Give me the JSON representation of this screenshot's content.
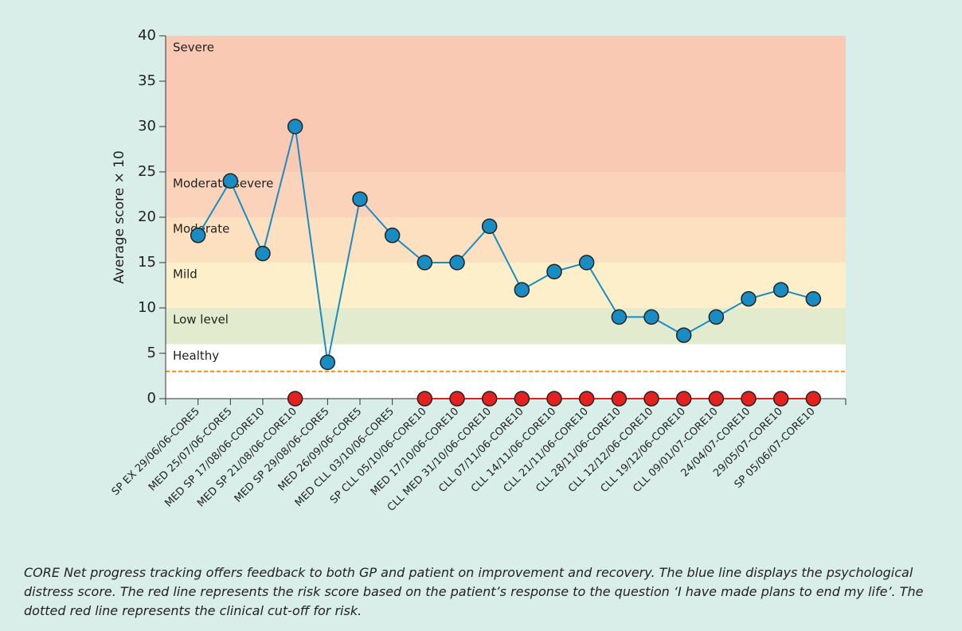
{
  "chart_data": {
    "type": "line",
    "ylabel": "Average score × 10",
    "categories": [
      "SP EX 29/06/06-CORE5",
      "MED 25/07/06-CORE5",
      "MED SP 17/08/06-CORE10",
      "MED SP 21/08/06-CORE10",
      "MED SP 29/08/06-CORE5",
      "MED 26/09/06-CORE5",
      "MED CLL 03/10/06-CORE5",
      "SP CLL 05/10/06-CORE10",
      "MED 17/10/06-CORE10",
      "CLL MED 31/10/06-CORE10",
      "CLL 07/11/06-CORE10",
      "CLL 14/11/06-CORE10",
      "CLL 21/11/06-CORE10",
      "CLL 28/11/06-CORE10",
      "CLL 12/12/06-CORE10",
      "CLL 19/12/06-CORE10",
      "CLL 09/01/07-CORE10",
      "24/04/07-CORE10",
      "29/05/07-CORE10",
      "SP 05/06/07-CORE10"
    ],
    "series": [
      {
        "color": "#1a8cc4",
        "values": [
          18,
          24,
          16,
          30,
          4,
          22,
          18,
          15,
          15,
          19,
          12,
          14,
          15,
          9,
          9,
          7,
          9,
          11,
          12,
          11
        ]
      },
      {
        "color": "#e3211f",
        "values": [
          null,
          null,
          null,
          0,
          null,
          null,
          null,
          0,
          0,
          0,
          0,
          0,
          0,
          0,
          0,
          0,
          0,
          0,
          0,
          0
        ]
      }
    ],
    "bands": [
      {
        "label": "Healthy",
        "from": 0,
        "to": 6,
        "color": "#ffffff"
      },
      {
        "label": "Low level",
        "from": 6,
        "to": 10,
        "color": "#e3ebce"
      },
      {
        "label": "Mild",
        "from": 10,
        "to": 15,
        "color": "#fdefc9"
      },
      {
        "label": "Moderate",
        "from": 15,
        "to": 20,
        "color": "#fce0c0"
      },
      {
        "label": "Moderate severe",
        "from": 20,
        "to": 25,
        "color": "#fbd3bb"
      },
      {
        "label": "Severe",
        "from": 25,
        "to": 40,
        "color": "#f9c9b4"
      }
    ],
    "cutoff": 3,
    "cutoff_color": "#f08a1c",
    "ylim": [
      0,
      40
    ],
    "yticks": [
      0,
      5,
      10,
      15,
      20,
      25,
      30,
      35,
      40
    ],
    "caption": "CORE Net progress tracking offers feedback to both GP and patient on improvement and recovery. The blue line displays the psychological distress score. The red line represents the risk score based on the patient’s response to the question ‘I have made plans to end my life’. The dotted red line represents the clinical cut-off for risk."
  }
}
